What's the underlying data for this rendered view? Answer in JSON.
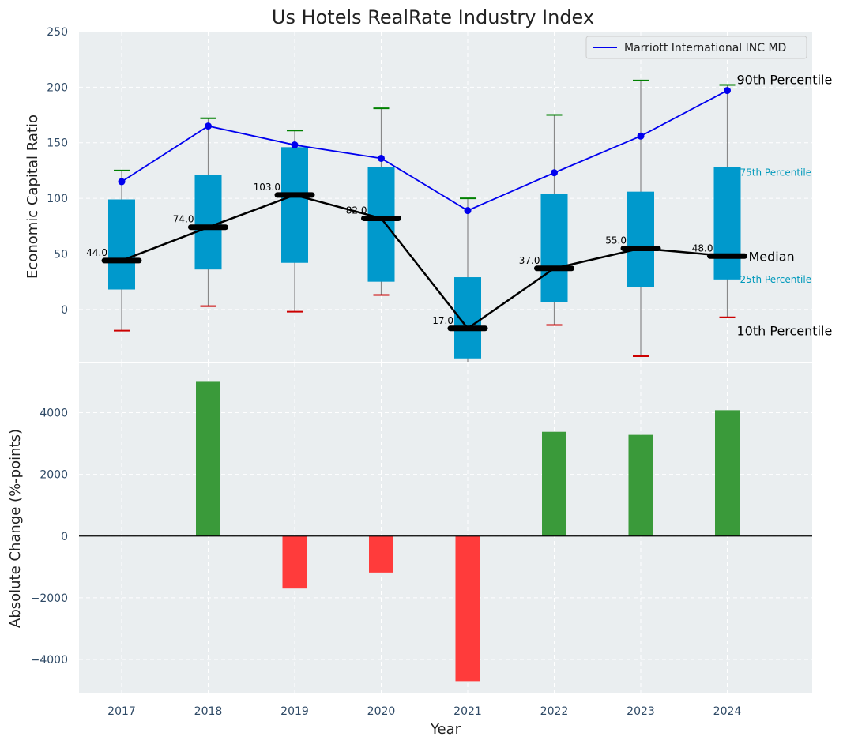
{
  "title": "Us Hotels RealRate Industry Index",
  "colors": {
    "panel_bg": "#eaeef0",
    "grid": "#ffffff",
    "box": "#0099cc",
    "whisker": "#888888",
    "p90_cap": "#008000",
    "p10_cap": "#cc0000",
    "median_line": "#000000",
    "company_line": "#0000ee",
    "positive_bar": "#3a9a3a",
    "negative_bar": "#ff3b3b",
    "tick_text": "#2f4a66",
    "percentile_label": "#0099bb"
  },
  "chart_data": [
    {
      "type": "box-percentile",
      "ylabel": "Economic Capital Ratio",
      "ylim": [
        -47,
        250
      ],
      "yticks": [
        0,
        50,
        100,
        150,
        200,
        250
      ],
      "grid": true,
      "legend": {
        "placement": "top-right",
        "entries": [
          "Marriott International INC MD"
        ]
      },
      "categories": [
        "2017",
        "2018",
        "2019",
        "2020",
        "2021",
        "2022",
        "2023",
        "2024"
      ],
      "p10": [
        -19,
        3,
        -2,
        13,
        -48,
        -14,
        -42,
        -7
      ],
      "p25": [
        18,
        36,
        42,
        25,
        -44,
        7,
        20,
        27
      ],
      "median": [
        44.0,
        74.0,
        103.0,
        82.0,
        -17.0,
        37.0,
        55.0,
        48.0
      ],
      "median_labels": [
        "44.0",
        "74.0",
        "103.0",
        "82.0",
        "-17.0",
        "37.0",
        "55.0",
        "48.0"
      ],
      "p75": [
        99,
        121,
        146,
        128,
        29,
        104,
        106,
        128
      ],
      "p90": [
        125,
        172,
        161,
        181,
        100,
        175,
        206,
        202
      ],
      "series": [
        {
          "name": "Marriott International INC MD",
          "values": [
            115,
            165,
            148,
            136,
            89,
            123,
            156,
            197
          ]
        }
      ],
      "annotations": {
        "p90": "90th Percentile",
        "p75": "75th Percentile",
        "median": "Median",
        "p25": "25th Percentile",
        "p10": "10th Percentile"
      }
    },
    {
      "type": "bar",
      "xlabel": "Year",
      "ylabel": "Absolute Change (%-points)",
      "ylim": [
        -5100,
        5600
      ],
      "yticks": [
        -4000,
        -2000,
        0,
        2000,
        4000
      ],
      "ytick_labels": [
        "−4000",
        "−2000",
        "0",
        "2000",
        "4000"
      ],
      "grid": true,
      "categories": [
        "2017",
        "2018",
        "2019",
        "2020",
        "2021",
        "2022",
        "2023",
        "2024"
      ],
      "values": [
        0,
        5000,
        -1700,
        -1180,
        -4700,
        3380,
        3280,
        4080
      ]
    }
  ]
}
